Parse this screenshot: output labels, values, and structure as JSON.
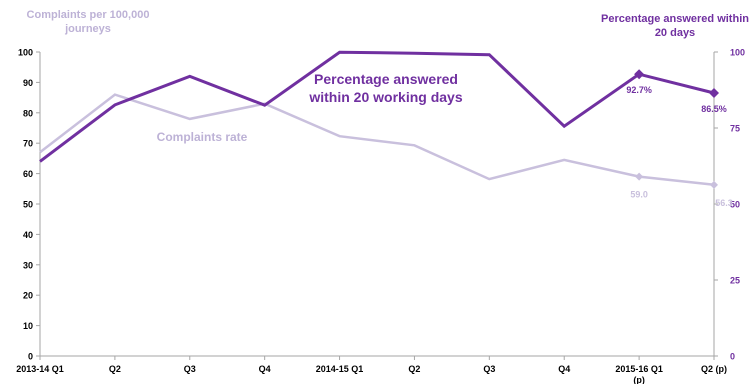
{
  "chart_data": {
    "type": "line",
    "categories": [
      "2013-14 Q1",
      "Q2",
      "Q3",
      "Q4",
      "2014-15 Q1",
      "Q2",
      "Q3",
      "Q4",
      "2015-16 Q1 (p)",
      "Q2 (p)"
    ],
    "left_axis": {
      "title": "Complaints  per 100,000 journeys",
      "ylim": [
        0,
        100
      ],
      "ticks": [
        0,
        10,
        20,
        30,
        40,
        50,
        60,
        70,
        80,
        90,
        100
      ]
    },
    "right_axis": {
      "title": "Percentage answered within 20 days",
      "ylim": [
        0,
        100
      ],
      "ticks": [
        0,
        25,
        50,
        75,
        100
      ]
    },
    "series": [
      {
        "name": "Complaints rate",
        "axis": "left",
        "color": "#c9c0dd",
        "values": [
          67,
          86,
          78,
          83,
          72.3,
          69.3,
          58.2,
          64.5,
          59.0,
          56.3
        ]
      },
      {
        "name": "Percentage answered within 20  working days",
        "axis": "right",
        "color": "#7030a0",
        "values": [
          64,
          82.6,
          92,
          82.5,
          99.9,
          99.6,
          99.1,
          75.6,
          92.7,
          86.5
        ]
      }
    ],
    "data_labels": {
      "dark": [
        "92.7%",
        "86.5%"
      ],
      "light": [
        "59.0",
        "56.3"
      ]
    },
    "grid": false,
    "legend": "none"
  }
}
